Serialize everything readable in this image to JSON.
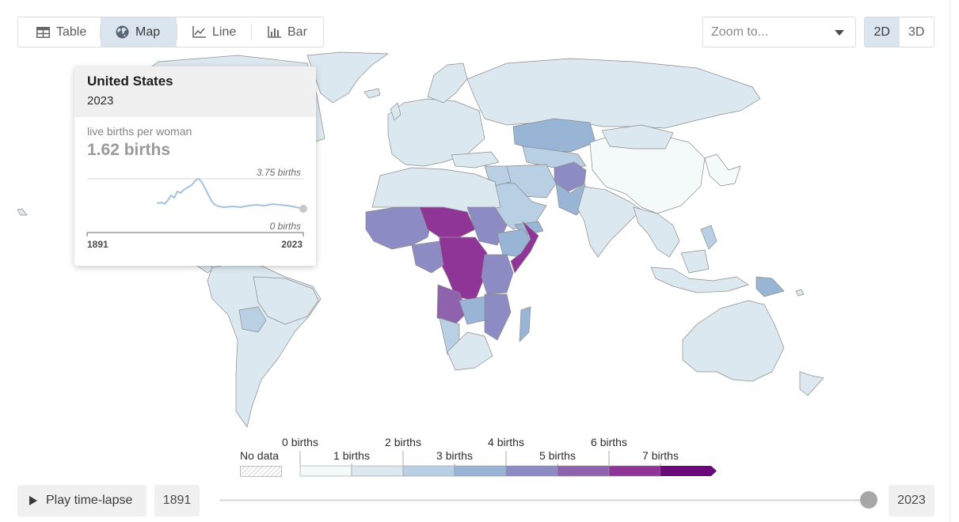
{
  "view_tabs": [
    {
      "label": "Table",
      "icon": "table-icon"
    },
    {
      "label": "Map",
      "icon": "globe-icon",
      "active": true
    },
    {
      "label": "Line",
      "icon": "line-chart-icon"
    },
    {
      "label": "Bar",
      "icon": "bar-chart-icon"
    }
  ],
  "zoom": {
    "placeholder": "Zoom to..."
  },
  "projection": {
    "options": [
      "2D",
      "3D"
    ],
    "active": "2D"
  },
  "tooltip": {
    "country": "United States",
    "year": "2023",
    "indicator": "live births per woman",
    "value": "1.62 births",
    "spark_max_label": "3.75 births",
    "spark_min_label": "0 births",
    "spark_start": "1891",
    "spark_end": "2023"
  },
  "legend": {
    "no_data_label": "No data",
    "top_labels": [
      "0 births",
      "2 births",
      "4 births",
      "6 births"
    ],
    "bottom_labels": [
      "1 births",
      "3 births",
      "5 births",
      "7 births"
    ],
    "colors": [
      "#f4f9fa",
      "#dce8f0",
      "#b9cfe3",
      "#98b5d6",
      "#8c8bc4",
      "#8f62ad",
      "#8f3597",
      "#6a0a78"
    ]
  },
  "timeline": {
    "play_label": "Play time-lapse",
    "start_year": "1891",
    "end_year": "2023"
  },
  "colors": {
    "accent": "#dbe5f0",
    "map_border": "#8c8c8c"
  }
}
